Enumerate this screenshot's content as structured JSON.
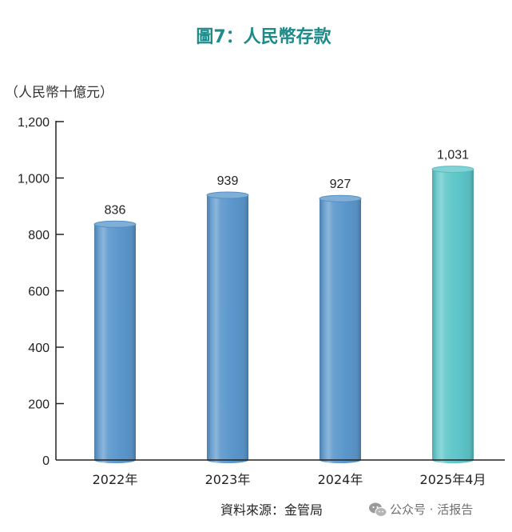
{
  "chart_data": {
    "type": "bar",
    "title": "圖7：人民幣存款",
    "ylabel": "（人民幣十億元）",
    "xlabel": "",
    "categories": [
      "2022年",
      "2023年",
      "2024年",
      "2025年4月"
    ],
    "values": [
      836,
      939,
      927,
      1031
    ],
    "value_labels": [
      "836",
      "939",
      "927",
      "1,031"
    ],
    "ylim": [
      0,
      1200
    ],
    "yticks": [
      0,
      200,
      400,
      600,
      800,
      1000,
      1200
    ],
    "ytick_labels": [
      "0",
      "200",
      "400",
      "600",
      "800",
      "1,000",
      "1,200"
    ],
    "grid": false,
    "legend": "none",
    "bar_colors": [
      "#5b97cc",
      "#5b97cc",
      "#5b97cc",
      "#5ec6c9"
    ]
  },
  "colors": {
    "title": "#1e8b8a",
    "axis": "#222222"
  },
  "source": "資料來源：金管局",
  "watermark": {
    "icon": "wechat-icon",
    "text": "公众号 · 活报告"
  }
}
